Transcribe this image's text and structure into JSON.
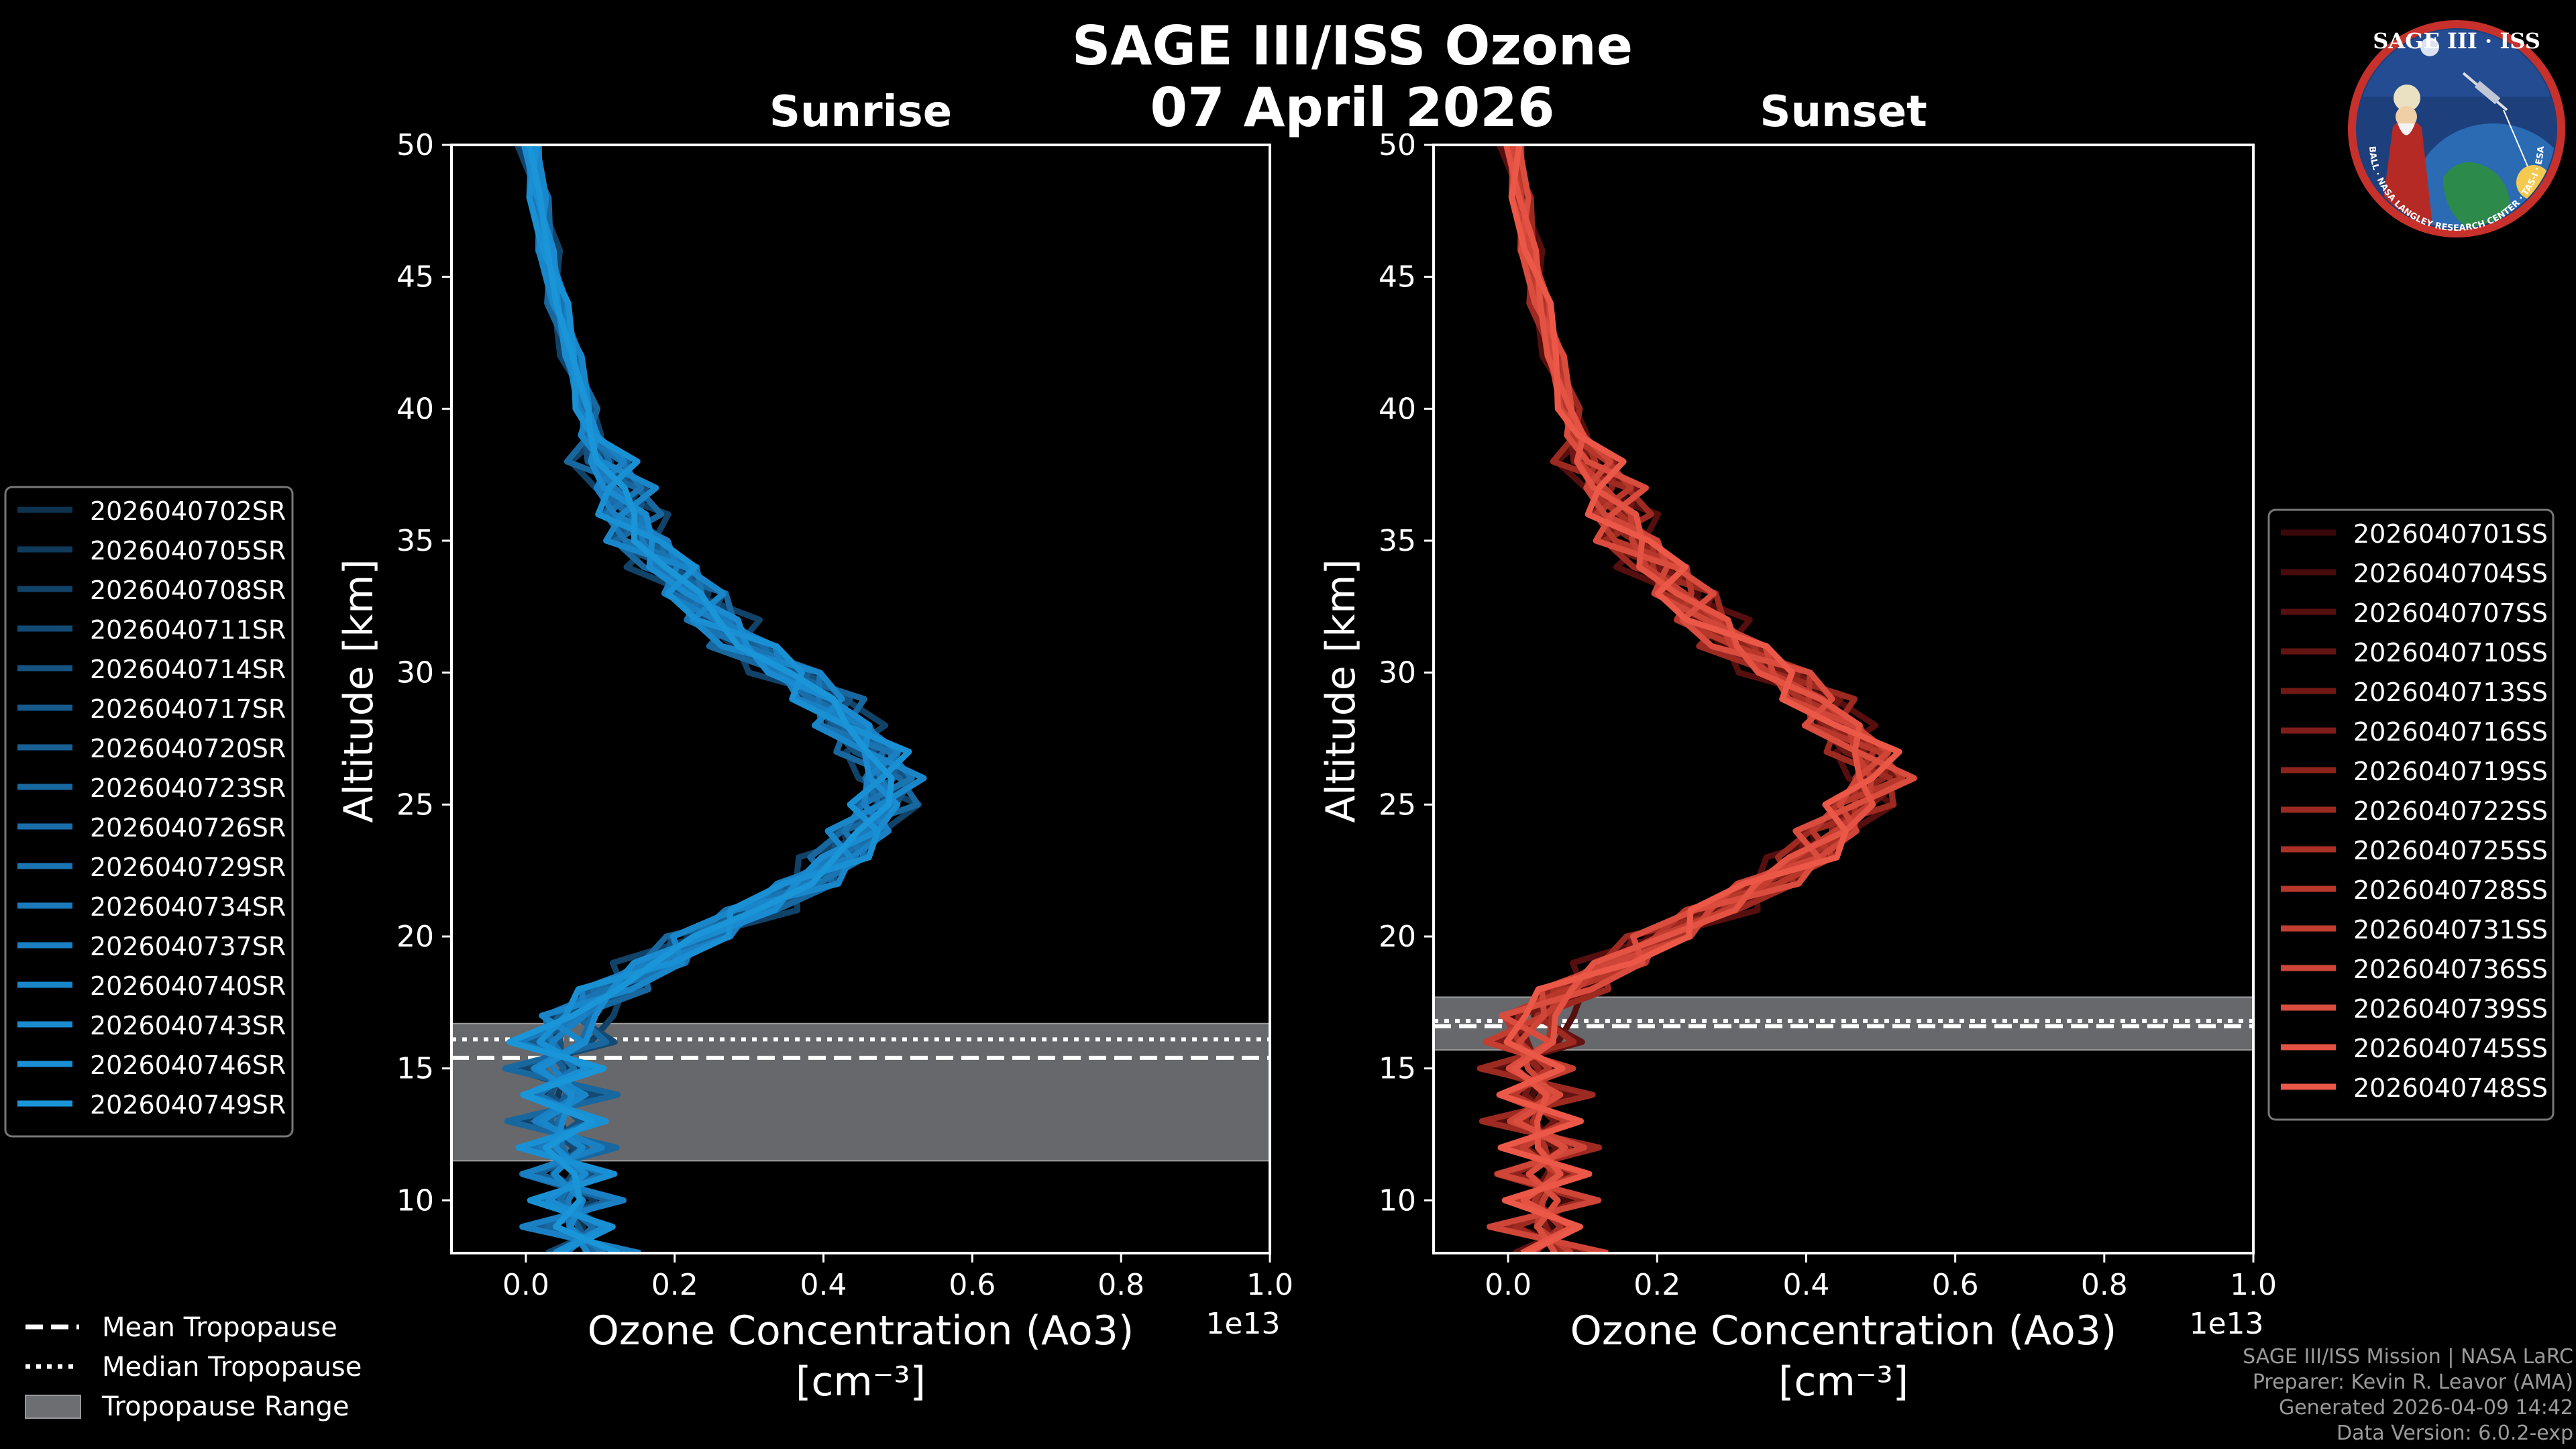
{
  "header": {
    "title": "SAGE III/ISS Ozone",
    "date": "07 April 2026"
  },
  "badge": {
    "text": "SAGE III · ISS",
    "ring_text": "BALL · NASA LANGLEY RESEARCH CENTER · TAS-I · ESA"
  },
  "footer": {
    "line1": "SAGE III/ISS Mission | NASA LaRC",
    "line2": "Preparer: Kevin R. Leavor (AMA)",
    "line3": "Generated 2026-04-09 14:42",
    "line4": "Data Version: 6.0.2-exp"
  },
  "colors": {
    "sunrise": "#1a95d8",
    "sunset": "#ec5848",
    "tropo_band": "#6c6e71"
  },
  "chart_data": [
    {
      "type": "line",
      "title": "Sunrise",
      "xlabel": "Ozone Concentration (Ao3)",
      "xunit": "[cm⁻³]",
      "ylabel": "Altitude [km]",
      "xlim": [
        -0.1,
        1.0
      ],
      "ylim": [
        8,
        50
      ],
      "x_scale_label": "1e13",
      "x_ticks": [
        0.0,
        0.2,
        0.4,
        0.6,
        0.8,
        1.0
      ],
      "x_tick_labels": [
        "0.0",
        "0.2",
        "0.4",
        "0.6",
        "0.8",
        "1.0"
      ],
      "y_ticks": [
        10,
        15,
        20,
        25,
        30,
        35,
        40,
        45,
        50
      ],
      "y_tick_labels": [
        "10",
        "15",
        "20",
        "25",
        "30",
        "35",
        "40",
        "45",
        "50"
      ],
      "tropopause": {
        "mean": 15.4,
        "median": 16.1,
        "range": [
          11.5,
          16.7
        ]
      },
      "legend_placement": "left",
      "series_names": [
        "2026040702SR",
        "2026040705SR",
        "2026040708SR",
        "2026040711SR",
        "2026040714SR",
        "2026040717SR",
        "2026040720SR",
        "2026040723SR",
        "2026040726SR",
        "2026040729SR",
        "2026040734SR",
        "2026040737SR",
        "2026040740SR",
        "2026040743SR",
        "2026040746SR",
        "2026040749SR"
      ],
      "series_colors": [
        "#0d3350",
        "#0f3a5c",
        "#114268",
        "#134a74",
        "#155280",
        "#16598b",
        "#176095",
        "#18679f",
        "#196ea9",
        "#1a74b2",
        "#1a7abb",
        "#1a80c3",
        "#1a86ca",
        "#1a8bd0",
        "#1a90d4",
        "#1a95d8"
      ],
      "profile": {
        "altitude_km": [
          8,
          9,
          10,
          11,
          12,
          13,
          14,
          15,
          16,
          17,
          18,
          19,
          20,
          21,
          22,
          23,
          24,
          25,
          26,
          27,
          28,
          29,
          30,
          31,
          32,
          33,
          34,
          35,
          36,
          37,
          38,
          39,
          40,
          42,
          44,
          46,
          48,
          50
        ],
        "ozone_1e13": [
          0.08,
          0.07,
          0.06,
          0.06,
          0.05,
          0.05,
          0.05,
          0.04,
          0.05,
          0.07,
          0.11,
          0.17,
          0.24,
          0.31,
          0.37,
          0.42,
          0.46,
          0.48,
          0.48,
          0.47,
          0.44,
          0.4,
          0.35,
          0.3,
          0.26,
          0.22,
          0.19,
          0.16,
          0.14,
          0.12,
          0.105,
          0.09,
          0.08,
          0.06,
          0.045,
          0.03,
          0.015,
          0.005
        ]
      }
    },
    {
      "type": "line",
      "title": "Sunset",
      "xlabel": "Ozone Concentration (Ao3)",
      "xunit": "[cm⁻³]",
      "ylabel": "Altitude [km]",
      "xlim": [
        -0.1,
        1.0
      ],
      "ylim": [
        8,
        50
      ],
      "x_scale_label": "1e13",
      "x_ticks": [
        0.0,
        0.2,
        0.4,
        0.6,
        0.8,
        1.0
      ],
      "x_tick_labels": [
        "0.0",
        "0.2",
        "0.4",
        "0.6",
        "0.8",
        "1.0"
      ],
      "y_ticks": [
        10,
        15,
        20,
        25,
        30,
        35,
        40,
        45,
        50
      ],
      "y_tick_labels": [
        "10",
        "15",
        "20",
        "25",
        "30",
        "35",
        "40",
        "45",
        "50"
      ],
      "tropopause": {
        "mean": 16.6,
        "median": 16.8,
        "range": [
          15.7,
          17.7
        ]
      },
      "legend_placement": "right",
      "series_names": [
        "2026040701SS",
        "2026040704SS",
        "2026040707SS",
        "2026040710SS",
        "2026040713SS",
        "2026040716SS",
        "2026040719SS",
        "2026040722SS",
        "2026040725SS",
        "2026040728SS",
        "2026040731SS",
        "2026040736SS",
        "2026040739SS",
        "2026040745SS",
        "2026040748SS"
      ],
      "series_colors": [
        "#3a0808",
        "#470b0b",
        "#550f0e",
        "#631311",
        "#711814",
        "#801d18",
        "#8e231c",
        "#9c2a21",
        "#aa3126",
        "#b7372b",
        "#c33e31",
        "#cf4537",
        "#da4c3d",
        "#e35242",
        "#ec5848"
      ],
      "profile": {
        "altitude_km": [
          8,
          9,
          10,
          11,
          12,
          13,
          14,
          15,
          16,
          17,
          18,
          19,
          20,
          21,
          22,
          23,
          24,
          25,
          26,
          27,
          28,
          29,
          30,
          31,
          32,
          33,
          34,
          35,
          36,
          37,
          38,
          39,
          40,
          42,
          44,
          46,
          48,
          50
        ],
        "ozone_1e13": [
          0.06,
          0.05,
          0.05,
          0.05,
          0.05,
          0.04,
          0.04,
          0.03,
          0.03,
          0.04,
          0.08,
          0.14,
          0.21,
          0.28,
          0.34,
          0.4,
          0.44,
          0.47,
          0.49,
          0.48,
          0.45,
          0.41,
          0.36,
          0.31,
          0.27,
          0.23,
          0.2,
          0.17,
          0.15,
          0.13,
          0.11,
          0.095,
          0.08,
          0.06,
          0.045,
          0.03,
          0.015,
          0.005
        ]
      }
    }
  ],
  "tropopause_legend": {
    "mean": "Mean Tropopause",
    "median": "Median Tropopause",
    "range": "Tropopause Range"
  }
}
